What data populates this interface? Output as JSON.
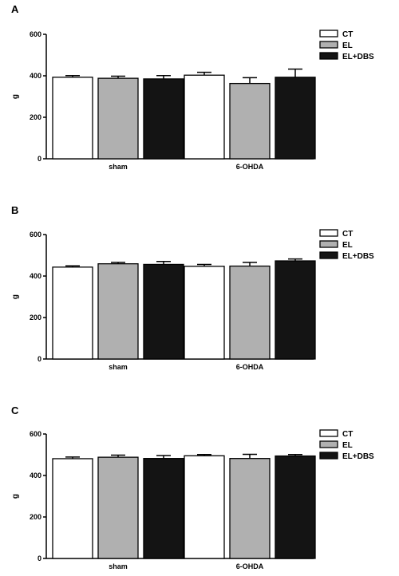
{
  "chart_data": [
    {
      "panel_label": "A",
      "type": "bar",
      "categories": [
        "sham",
        "6-OHDA"
      ],
      "series": [
        {
          "name": "CT",
          "color": "#ffffff",
          "values": [
            393,
            403
          ],
          "errors": [
            8,
            14
          ]
        },
        {
          "name": "EL",
          "color": "#b0b0b0",
          "values": [
            388,
            363
          ],
          "errors": [
            10,
            28
          ]
        },
        {
          "name": "EL+DBS",
          "color": "#141414",
          "values": [
            385,
            393
          ],
          "errors": [
            16,
            39
          ]
        }
      ],
      "ylabel": "g",
      "ylim": [
        0,
        600
      ],
      "yticks": [
        0,
        200,
        400,
        600
      ],
      "legend_position": "top-right"
    },
    {
      "panel_label": "B",
      "type": "bar",
      "categories": [
        "sham",
        "6-OHDA"
      ],
      "series": [
        {
          "name": "CT",
          "color": "#ffffff",
          "values": [
            443,
            447
          ],
          "errors": [
            6,
            9
          ]
        },
        {
          "name": "EL",
          "color": "#b0b0b0",
          "values": [
            459,
            448
          ],
          "errors": [
            7,
            18
          ]
        },
        {
          "name": "EL+DBS",
          "color": "#141414",
          "values": [
            456,
            473
          ],
          "errors": [
            14,
            9
          ]
        }
      ],
      "ylabel": "g",
      "ylim": [
        0,
        600
      ],
      "yticks": [
        0,
        200,
        400,
        600
      ],
      "legend_position": "top-right"
    },
    {
      "panel_label": "C",
      "type": "bar",
      "categories": [
        "sham",
        "6-OHDA"
      ],
      "series": [
        {
          "name": "CT",
          "color": "#ffffff",
          "values": [
            481,
            495
          ],
          "errors": [
            8,
            6
          ]
        },
        {
          "name": "EL",
          "color": "#b0b0b0",
          "values": [
            488,
            482
          ],
          "errors": [
            10,
            20
          ]
        },
        {
          "name": "EL+DBS",
          "color": "#141414",
          "values": [
            482,
            494
          ],
          "errors": [
            14,
            7
          ]
        }
      ],
      "ylabel": "g",
      "ylim": [
        0,
        600
      ],
      "yticks": [
        0,
        200,
        400,
        600
      ],
      "legend_position": "top-right"
    }
  ]
}
